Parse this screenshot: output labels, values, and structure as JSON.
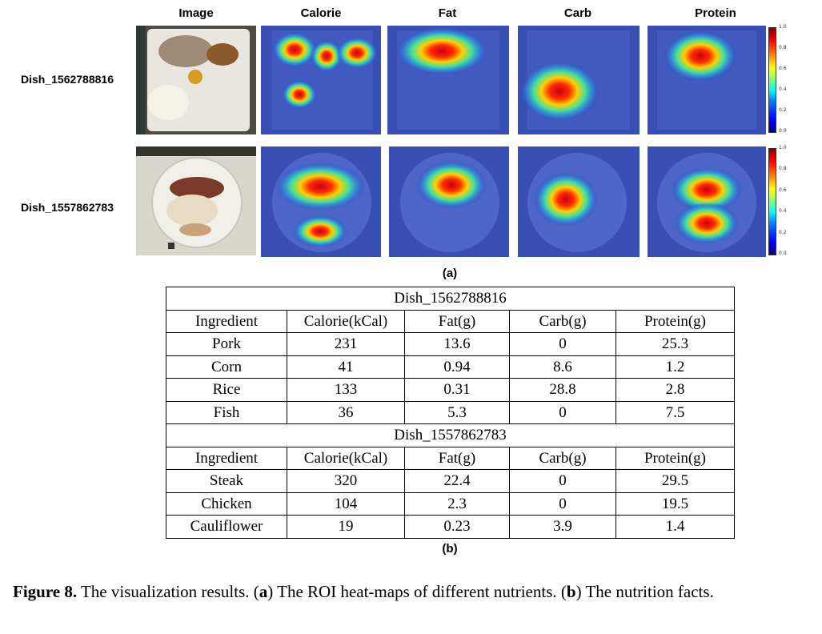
{
  "figure_a": {
    "column_headers": [
      "Image",
      "Calorie",
      "Fat",
      "Carb",
      "Protein"
    ],
    "rows": [
      {
        "dish": "Dish_1562788816"
      },
      {
        "dish": "Dish_1557862783"
      }
    ],
    "colorbar_ticks": [
      "1.0",
      "0.8",
      "0.6",
      "0.4",
      "0.2",
      "0.0"
    ],
    "sub_label": "(a)"
  },
  "table_b": {
    "columns": [
      "Ingredient",
      "Calorie(kCal)",
      "Fat(g)",
      "Carb(g)",
      "Protein(g)"
    ],
    "dishes": [
      {
        "name": "Dish_1562788816",
        "rows": [
          [
            "Pork",
            "231",
            "13.6",
            "0",
            "25.3"
          ],
          [
            "Corn",
            "41",
            "0.94",
            "8.6",
            "1.2"
          ],
          [
            "Rice",
            "133",
            "0.31",
            "28.8",
            "2.8"
          ],
          [
            "Fish",
            "36",
            "5.3",
            "0",
            "7.5"
          ]
        ]
      },
      {
        "name": "Dish_1557862783",
        "rows": [
          [
            "Steak",
            "320",
            "22.4",
            "0",
            "29.5"
          ],
          [
            "Chicken",
            "104",
            "2.3",
            "0",
            "19.5"
          ],
          [
            "Cauliflower",
            "19",
            "0.23",
            "3.9",
            "1.4"
          ]
        ]
      }
    ],
    "sub_label": "(b)"
  },
  "caption": {
    "label": "Figure 8.",
    "text_1": " The visualization results.  (",
    "a": "a",
    "text_2": ") The ROI heat-maps of different nutrients.  (",
    "b": "b",
    "text_3": ") The nutrition  facts."
  }
}
